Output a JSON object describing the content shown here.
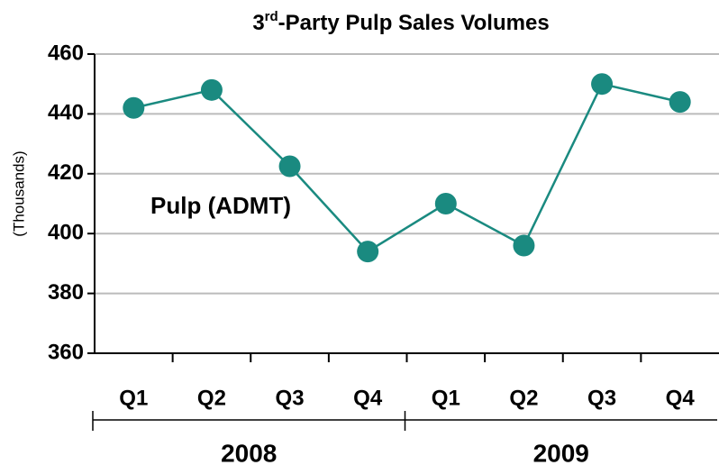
{
  "chart_data": {
    "type": "line",
    "title": [
      "3",
      "rd",
      "-Party Pulp Sales Volumes"
    ],
    "y_label": "(Thousands)",
    "categories": [
      "Q1",
      "Q2",
      "Q3",
      "Q4",
      "Q1",
      "Q2",
      "Q3",
      "Q4"
    ],
    "groups": [
      "2008",
      "2009"
    ],
    "series": [
      {
        "name": "Pulp (ADMT)",
        "color": "#1a8a80",
        "values": [
          442,
          448,
          422.5,
          394,
          410,
          396,
          450,
          444
        ]
      }
    ],
    "ylim": [
      360,
      460
    ],
    "yticks": [
      360,
      380,
      400,
      420,
      440,
      460
    ],
    "grid": true
  }
}
